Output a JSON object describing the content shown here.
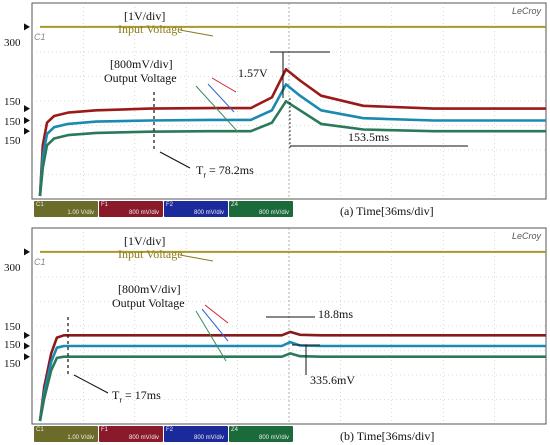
{
  "chart_data": [
    {
      "type": "line",
      "caption": "(a)  Time[36ms/div]",
      "brand": "LeCroy",
      "trigger_label": "C1",
      "axis_labels": {
        "input": "300",
        "output_red": "150",
        "output_blue": "150",
        "output_green": "150"
      },
      "annotations": {
        "input_scale": "[1V/div]",
        "input_name": "Input Voltage",
        "output_scale": "[800mV/div]",
        "output_name": "Output Voltage",
        "overshoot": "1.57V",
        "settling": "153.5ms",
        "rise_time": "T",
        "rise_time_sub": "r",
        "rise_time_value": " = 78.2ms"
      },
      "status": [
        {
          "name": "C1",
          "top": "1.00 V/div",
          "bottom": "1.00 V/div",
          "color": "#6b6b2a"
        },
        {
          "name": "F1",
          "top": "800 mV/div",
          "bottom": "800 mV/div",
          "color": "#8a1a2a"
        },
        {
          "name": "F2",
          "top": "800 mV/div",
          "bottom": "800 mV/div",
          "color": "#1a2a9a"
        },
        {
          "name": "Z4",
          "top": "800 mV/div",
          "bottom": "800 mV/div",
          "color": "#1a6a3a"
        }
      ],
      "series": [
        {
          "name": "Input Voltage",
          "color": "#a89a2a",
          "x": [
            0,
            36,
            72,
            108,
            144,
            180,
            216,
            252,
            288,
            324,
            360
          ],
          "y": [
            300,
            300,
            300,
            300,
            300,
            300,
            300,
            300,
            300,
            300,
            300
          ]
        },
        {
          "name": "Output Voltage",
          "color": "#9a1a1a",
          "x": [
            0,
            2,
            5,
            10,
            20,
            40,
            78,
            120,
            150,
            165,
            175,
            185,
            200,
            230,
            280,
            360
          ],
          "y": [
            0,
            90,
            130,
            142,
            148,
            152,
            155,
            156,
            156,
            175,
            225,
            205,
            178,
            160,
            155,
            155
          ]
        },
        {
          "name": "Output Voltage",
          "color": "#1a8ab0",
          "x": [
            0,
            2,
            5,
            10,
            20,
            40,
            78,
            120,
            150,
            165,
            175,
            185,
            200,
            230,
            280,
            360
          ],
          "y": [
            0,
            70,
            110,
            122,
            128,
            132,
            134,
            135,
            135,
            152,
            198,
            178,
            152,
            138,
            134,
            134
          ]
        },
        {
          "name": "Output Voltage",
          "color": "#2a7a5a",
          "x": [
            0,
            2,
            5,
            10,
            20,
            40,
            78,
            120,
            150,
            165,
            175,
            185,
            200,
            230,
            280,
            360
          ],
          "y": [
            0,
            50,
            90,
            102,
            108,
            112,
            114,
            115,
            115,
            130,
            168,
            152,
            128,
            118,
            115,
            115
          ]
        }
      ]
    },
    {
      "type": "line",
      "caption": "(b) Time[36ms/div]",
      "brand": "LeCroy",
      "trigger_label": "C1",
      "axis_labels": {
        "input": "300",
        "output_red": "150",
        "output_blue": "150",
        "output_green": "150"
      },
      "annotations": {
        "input_scale": "[1V/div]",
        "input_name": "Input Voltage",
        "output_scale": "[800mV/div]",
        "output_name": "Output Voltage",
        "settling": "18.8ms",
        "overshoot": "335.6mV",
        "rise_time": "T",
        "rise_time_sub": "r",
        "rise_time_value": " = 17ms"
      },
      "status": [
        {
          "name": "C1",
          "top": "1.00 V/div",
          "bottom": "1.00 V/div",
          "color": "#6b6b2a"
        },
        {
          "name": "F1",
          "top": "800 mV/div",
          "bottom": "800 mV/div",
          "color": "#8a1a2a"
        },
        {
          "name": "F2",
          "top": "800 mV/div",
          "bottom": "800 mV/div",
          "color": "#1a2a9a"
        },
        {
          "name": "Z4",
          "top": "800 mV/div",
          "bottom": "800 mV/div",
          "color": "#1a6a3a"
        }
      ],
      "series": [
        {
          "name": "Input Voltage",
          "color": "#a89a2a",
          "x": [
            0,
            36,
            72,
            108,
            144,
            180,
            216,
            252,
            288,
            324,
            360
          ],
          "y": [
            300,
            300,
            300,
            300,
            300,
            300,
            300,
            300,
            300,
            300,
            300
          ]
        },
        {
          "name": "Output Voltage",
          "color": "#8a1a1a",
          "x": [
            0,
            3,
            8,
            12,
            17,
            40,
            100,
            160,
            172,
            178,
            185,
            200,
            260,
            360
          ],
          "y": [
            0,
            60,
            120,
            148,
            152,
            152,
            152,
            152,
            152,
            158,
            153,
            152,
            152,
            152
          ]
        },
        {
          "name": "Output Voltage",
          "color": "#1a8ab0",
          "x": [
            0,
            3,
            8,
            12,
            17,
            40,
            100,
            160,
            172,
            178,
            185,
            200,
            260,
            360
          ],
          "y": [
            0,
            50,
            105,
            130,
            133,
            133,
            133,
            133,
            133,
            140,
            134,
            133,
            133,
            133
          ]
        },
        {
          "name": "Output Voltage",
          "color": "#2a7a5a",
          "x": [
            0,
            3,
            8,
            12,
            17,
            40,
            100,
            160,
            172,
            178,
            185,
            200,
            260,
            360
          ],
          "y": [
            0,
            40,
            90,
            112,
            114,
            114,
            114,
            114,
            114,
            120,
            115,
            114,
            114,
            114
          ]
        }
      ]
    }
  ]
}
